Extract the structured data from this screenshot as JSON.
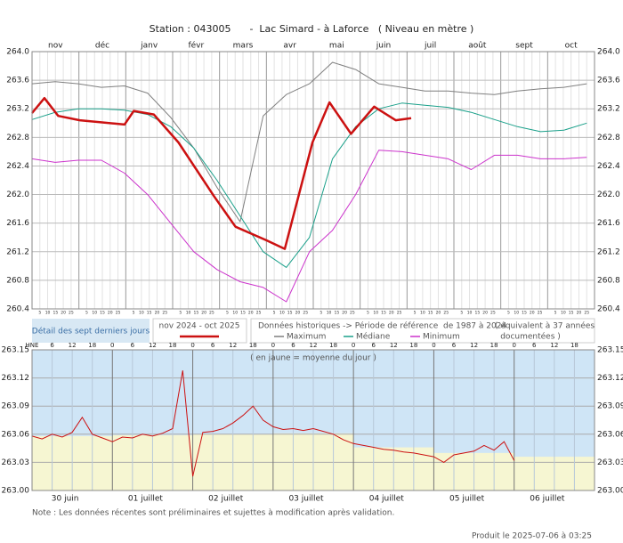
{
  "title": "Station : 043005      -  Lac Simard - à Laforce   ( Niveau en mètre )",
  "chart_data": [
    {
      "type": "line",
      "categories": [
        "nov",
        "déc",
        "janv",
        "févr",
        "mars",
        "avr",
        "mai",
        "juin",
        "juil",
        "août",
        "sept",
        "oct"
      ],
      "day_ticks": [
        5,
        10,
        15,
        20,
        25
      ],
      "xlim": [
        0,
        365
      ],
      "ylim": [
        260.4,
        264.0
      ],
      "yticks": [
        260.4,
        260.8,
        261.2,
        261.6,
        {
          "value": 262.0,
          "label": "262.0"
        },
        262.4,
        262.8,
        263.2,
        263.6,
        {
          "value": 264.0,
          "label": "264.0"
        }
      ],
      "grid": true,
      "series": [
        {
          "name": "Maximum",
          "color": "#7f7f7f",
          "width": 1,
          "x": [
            0,
            15,
            30,
            45,
            60,
            75,
            90,
            105,
            120,
            135,
            150,
            165,
            180,
            195,
            210,
            225,
            240,
            255,
            270,
            285,
            300,
            315,
            330,
            345,
            360
          ],
          "values": [
            263.55,
            263.58,
            263.55,
            263.5,
            263.52,
            263.42,
            263.08,
            262.65,
            262.1,
            261.62,
            263.1,
            263.4,
            263.55,
            263.85,
            263.75,
            263.55,
            263.5,
            263.45,
            263.45,
            263.42,
            263.4,
            263.45,
            263.48,
            263.5,
            263.55
          ]
        },
        {
          "name": "Médiane",
          "color": "#1aa08a",
          "width": 1,
          "x": [
            0,
            15,
            30,
            45,
            60,
            75,
            90,
            105,
            120,
            135,
            150,
            165,
            180,
            195,
            210,
            225,
            240,
            255,
            270,
            285,
            300,
            315,
            330,
            345,
            360
          ],
          "values": [
            263.05,
            263.15,
            263.2,
            263.2,
            263.18,
            263.12,
            262.95,
            262.65,
            262.2,
            261.7,
            261.2,
            260.98,
            261.4,
            262.5,
            262.95,
            263.2,
            263.28,
            263.25,
            263.22,
            263.15,
            263.05,
            262.95,
            262.88,
            262.9,
            263.0
          ]
        },
        {
          "name": "Minimum",
          "color": "#cc33cc",
          "width": 1,
          "x": [
            0,
            15,
            30,
            45,
            60,
            75,
            90,
            105,
            120,
            135,
            150,
            165,
            180,
            195,
            210,
            225,
            240,
            255,
            270,
            285,
            300,
            315,
            330,
            345,
            360
          ],
          "values": [
            262.5,
            262.45,
            262.48,
            262.48,
            262.3,
            262.0,
            261.6,
            261.2,
            260.95,
            260.78,
            260.7,
            260.5,
            261.2,
            261.5,
            262.0,
            262.62,
            262.6,
            262.55,
            262.5,
            262.35,
            262.55,
            262.55,
            262.5,
            262.5,
            262.52
          ]
        },
        {
          "name": "nov 2024 - oct 2025",
          "color": "#cc1111",
          "width": 2.5,
          "x": [
            0,
            8,
            17,
            31,
            60,
            66,
            79,
            95,
            118,
            132,
            152,
            164,
            182,
            193,
            207,
            222,
            236,
            246
          ],
          "values": [
            263.14,
            263.35,
            263.1,
            263.04,
            262.98,
            263.17,
            263.12,
            262.73,
            261.98,
            261.55,
            261.36,
            261.24,
            262.73,
            263.29,
            262.85,
            263.23,
            263.04,
            263.07
          ]
        }
      ]
    },
    {
      "type": "line",
      "annotation": "( en jaune = moyenne du jour )",
      "hour_label": "HNE",
      "hour_ticks": [
        0,
        6,
        12,
        18
      ],
      "categories": [
        "30 juin",
        "01 juillet",
        "02 juillet",
        "03 juillet",
        "04 juillet",
        "05 juillet",
        "06 juillet"
      ],
      "xlim": [
        0,
        168
      ],
      "ylim": [
        263.0,
        263.15
      ],
      "yticks": [
        {
          "value": 263.0,
          "label": "263.00"
        },
        263.03,
        263.06,
        263.09,
        263.12,
        263.15
      ],
      "color": "#cc1111",
      "mean_color": "#f6f6d2",
      "background": "#cfe5f6",
      "daily_mean": [
        263.058,
        263.059,
        263.06,
        263.061,
        263.046,
        263.04,
        263.036
      ],
      "x": [
        0,
        3,
        6,
        9,
        12,
        15,
        18,
        21,
        24,
        27,
        30,
        33,
        36,
        39,
        42,
        45,
        48,
        51,
        54,
        57,
        60,
        63,
        66,
        69,
        72,
        75,
        78,
        81,
        84,
        87,
        90,
        93,
        96,
        99,
        102,
        105,
        108,
        111,
        114,
        117,
        120,
        123,
        126,
        129,
        132,
        135,
        138,
        141,
        144
      ],
      "values": [
        263.058,
        263.055,
        263.06,
        263.057,
        263.062,
        263.078,
        263.06,
        263.056,
        263.052,
        263.057,
        263.056,
        263.06,
        263.058,
        263.061,
        263.066,
        263.128,
        263.015,
        263.062,
        263.063,
        263.066,
        263.072,
        263.08,
        263.09,
        263.075,
        263.068,
        263.065,
        263.066,
        263.064,
        263.066,
        263.063,
        263.06,
        263.054,
        263.05,
        263.048,
        263.046,
        263.044,
        263.043,
        263.041,
        263.04,
        263.038,
        263.036,
        263.03,
        263.038,
        263.04,
        263.042,
        263.048,
        263.043,
        263.052,
        263.032
      ]
    }
  ],
  "legend": {
    "detail_link": "Détail des sept derniers jours",
    "historical": "Données historiques -> Période de référence  de 1987 à 2024",
    "equivalence": [
      "( équivalent à 37 années",
      "documentées )"
    ]
  },
  "note": "Note : Les données récentes sont préliminaires et sujettes à modification après validation.",
  "produced": "Produit le 2025-07-06 à 03:25"
}
